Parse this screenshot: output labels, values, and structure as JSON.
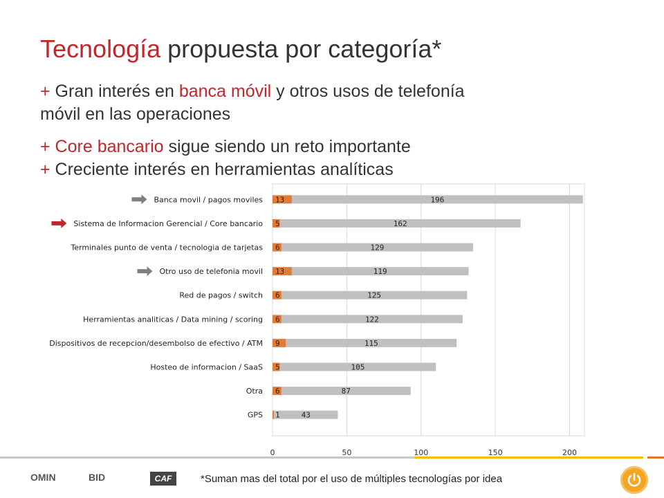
{
  "slide": {
    "title_highlight": "Tecnología",
    "title_rest": " propuesta por categoría*",
    "bullet1_plus": "+",
    "bullet1_pre": " Gran interés en ",
    "bullet1_red": "banca móvil",
    "bullet1_post": " y otros usos de telefonía",
    "bullet1_line2": "móvil en las operaciones",
    "bullet2_plus": "+",
    "bullet2_red": " Core bancario",
    "bullet2_post": " sigue siendo un reto importante",
    "bullet3_plus": "+",
    "bullet3_text": " Creciente interés en herramientas analíticas",
    "footnote": "*Suman mas del total por el uso de múltiples tecnologías por idea",
    "logos": {
      "omin": "OMIN",
      "bid": "BID",
      "caf": "CAF"
    }
  },
  "chart_data": {
    "type": "bar",
    "orientation": "horizontal",
    "stacked": true,
    "categories": [
      "Banca movil / pagos moviles",
      "Sistema de Informacion Gerencial / Core bancario",
      "Terminales punto de venta / tecnologia de tarjetas",
      "Otro uso de telefonia movil",
      "Red de pagos / switch",
      "Herramientas analiticas / Data mining / scoring",
      "Dispositivos de recepcion/desembolso de efectivo / ATM",
      "Hosteo de informacion / SaaS",
      "Otra",
      "GPS"
    ],
    "series": [
      {
        "values": [
          13,
          5,
          6,
          13,
          6,
          6,
          9,
          5,
          6,
          1
        ],
        "color": "#e07b39"
      },
      {
        "values": [
          196,
          162,
          129,
          119,
          125,
          122,
          115,
          105,
          87,
          43
        ],
        "color": "#c0c0c0"
      }
    ],
    "xlim": [
      0,
      210
    ],
    "xticks": [
      "0",
      "50",
      "100",
      "150",
      "200"
    ],
    "xtick_values": [
      0,
      50,
      100,
      150,
      200
    ],
    "grid": true,
    "arrows": [
      {
        "row": 0,
        "color": "#808080"
      },
      {
        "row": 1,
        "color": "#c0272d"
      },
      {
        "row": 3,
        "color": "#808080"
      }
    ]
  }
}
